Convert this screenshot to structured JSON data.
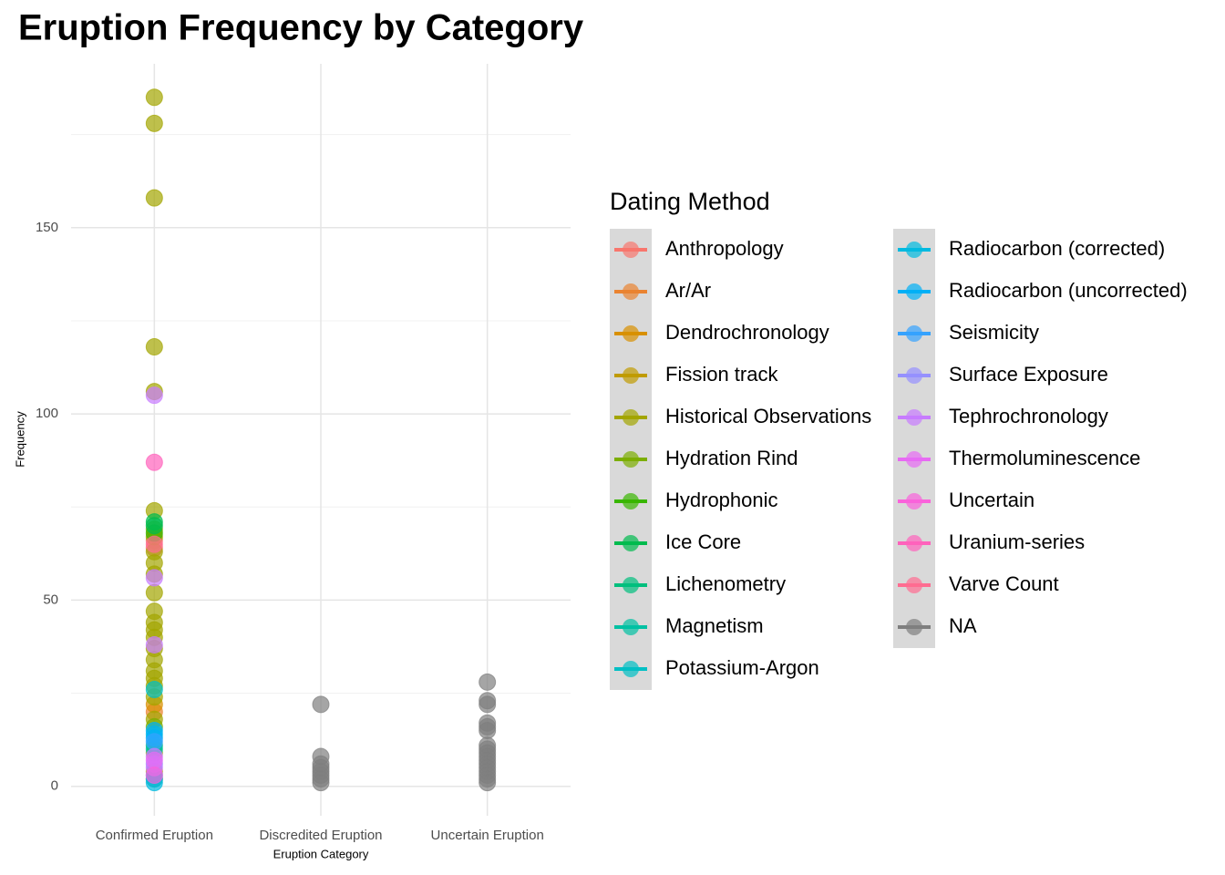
{
  "chart_data": {
    "type": "strip",
    "title": "Eruption Frequency by Category",
    "x_label": "Eruption Category",
    "y_label": "Frequency",
    "legend_title": "Dating Method",
    "categories": [
      "Confirmed Eruption",
      "Discredited Eruption",
      "Uncertain Eruption"
    ],
    "ylim": [
      -3,
      194
    ],
    "yticks": [
      0,
      50,
      100,
      150
    ],
    "y_minor_ticks": [
      25,
      75,
      125,
      175
    ],
    "grid": true,
    "legend_position": "right",
    "series": [
      {
        "name": "Anthropology",
        "color": "#F8766D",
        "x": [
          "Confirmed Eruption",
          "Confirmed Eruption"
        ],
        "values": [
          66,
          64
        ]
      },
      {
        "name": "Ar/Ar",
        "color": "#EA8331",
        "x": [
          "Confirmed Eruption"
        ],
        "values": [
          20
        ]
      },
      {
        "name": "Dendrochronology",
        "color": "#D89000",
        "x": [
          "Confirmed Eruption",
          "Confirmed Eruption"
        ],
        "values": [
          22,
          2
        ]
      },
      {
        "name": "Fission track",
        "color": "#C09B00",
        "x": [
          "Confirmed Eruption"
        ],
        "values": [
          4
        ]
      },
      {
        "name": "Historical Observations",
        "color": "#A3A500",
        "x": [
          "Confirmed Eruption",
          "Confirmed Eruption",
          "Confirmed Eruption",
          "Confirmed Eruption",
          "Confirmed Eruption",
          "Confirmed Eruption",
          "Confirmed Eruption",
          "Confirmed Eruption",
          "Confirmed Eruption",
          "Confirmed Eruption",
          "Confirmed Eruption",
          "Confirmed Eruption",
          "Confirmed Eruption",
          "Confirmed Eruption",
          "Confirmed Eruption",
          "Confirmed Eruption",
          "Confirmed Eruption",
          "Confirmed Eruption",
          "Confirmed Eruption",
          "Confirmed Eruption",
          "Confirmed Eruption",
          "Confirmed Eruption",
          "Confirmed Eruption",
          "Confirmed Eruption"
        ],
        "values": [
          185,
          178,
          158,
          118,
          106,
          74,
          69,
          67,
          63,
          60,
          57,
          52,
          47,
          44,
          42,
          40,
          37,
          34,
          31,
          29,
          27,
          24,
          18,
          9
        ]
      },
      {
        "name": "Hydration Rind",
        "color": "#7CAE00",
        "x": [
          "Confirmed Eruption"
        ],
        "values": [
          16
        ]
      },
      {
        "name": "Hydrophonic",
        "color": "#39B600",
        "x": [
          "Confirmed Eruption"
        ],
        "values": [
          68
        ]
      },
      {
        "name": "Ice Core",
        "color": "#00BB4E",
        "x": [
          "Confirmed Eruption",
          "Confirmed Eruption"
        ],
        "values": [
          71,
          70
        ]
      },
      {
        "name": "Lichenometry",
        "color": "#00BF7D",
        "x": [
          "Confirmed Eruption"
        ],
        "values": [
          11
        ]
      },
      {
        "name": "Magnetism",
        "color": "#00C1A3",
        "x": [
          "Confirmed Eruption"
        ],
        "values": [
          10
        ]
      },
      {
        "name": "Potassium-Argon",
        "color": "#00BFC4",
        "x": [
          "Confirmed Eruption"
        ],
        "values": [
          26
        ]
      },
      {
        "name": "Radiocarbon (corrected)",
        "color": "#00BAE0",
        "x": [
          "Confirmed Eruption",
          "Confirmed Eruption",
          "Confirmed Eruption",
          "Confirmed Eruption"
        ],
        "values": [
          14,
          3,
          2,
          1
        ]
      },
      {
        "name": "Radiocarbon (uncorrected)",
        "color": "#00B0F6",
        "x": [
          "Confirmed Eruption",
          "Confirmed Eruption"
        ],
        "values": [
          15,
          13
        ]
      },
      {
        "name": "Seismicity",
        "color": "#35A2FF",
        "x": [
          "Confirmed Eruption"
        ],
        "values": [
          12
        ]
      },
      {
        "name": "Surface Exposure",
        "color": "#9590FF",
        "x": [
          "Confirmed Eruption"
        ],
        "values": [
          6
        ]
      },
      {
        "name": "Tephrochronology",
        "color": "#C77CFF",
        "x": [
          "Confirmed Eruption",
          "Confirmed Eruption",
          "Confirmed Eruption",
          "Confirmed Eruption",
          "Confirmed Eruption"
        ],
        "values": [
          105,
          56,
          38,
          8,
          5
        ]
      },
      {
        "name": "Thermoluminescence",
        "color": "#E76BF3",
        "x": [
          "Confirmed Eruption"
        ],
        "values": [
          7
        ]
      },
      {
        "name": "Uncertain",
        "color": "#FA62DB",
        "x": [
          "Confirmed Eruption"
        ],
        "values": [
          3
        ]
      },
      {
        "name": "Uranium-series",
        "color": "#FF62BC",
        "x": [
          "Confirmed Eruption"
        ],
        "values": [
          87
        ]
      },
      {
        "name": "Varve Count",
        "color": "#FF6C91",
        "x": [
          "Confirmed Eruption"
        ],
        "values": [
          65
        ]
      },
      {
        "name": "NA",
        "color": "#7F7F7F",
        "x": [
          "Discredited Eruption",
          "Discredited Eruption",
          "Discredited Eruption",
          "Discredited Eruption",
          "Discredited Eruption",
          "Discredited Eruption",
          "Discredited Eruption",
          "Discredited Eruption",
          "Uncertain Eruption",
          "Uncertain Eruption",
          "Uncertain Eruption",
          "Uncertain Eruption",
          "Uncertain Eruption",
          "Uncertain Eruption",
          "Uncertain Eruption",
          "Uncertain Eruption",
          "Uncertain Eruption",
          "Uncertain Eruption",
          "Uncertain Eruption",
          "Uncertain Eruption",
          "Uncertain Eruption",
          "Uncertain Eruption",
          "Uncertain Eruption",
          "Uncertain Eruption",
          "Uncertain Eruption"
        ],
        "values": [
          22,
          8,
          6,
          5,
          4,
          3,
          2,
          1,
          28,
          23,
          22,
          17,
          16,
          15,
          11,
          10,
          9,
          8,
          7,
          6,
          5,
          4,
          3,
          2,
          1
        ]
      }
    ]
  }
}
